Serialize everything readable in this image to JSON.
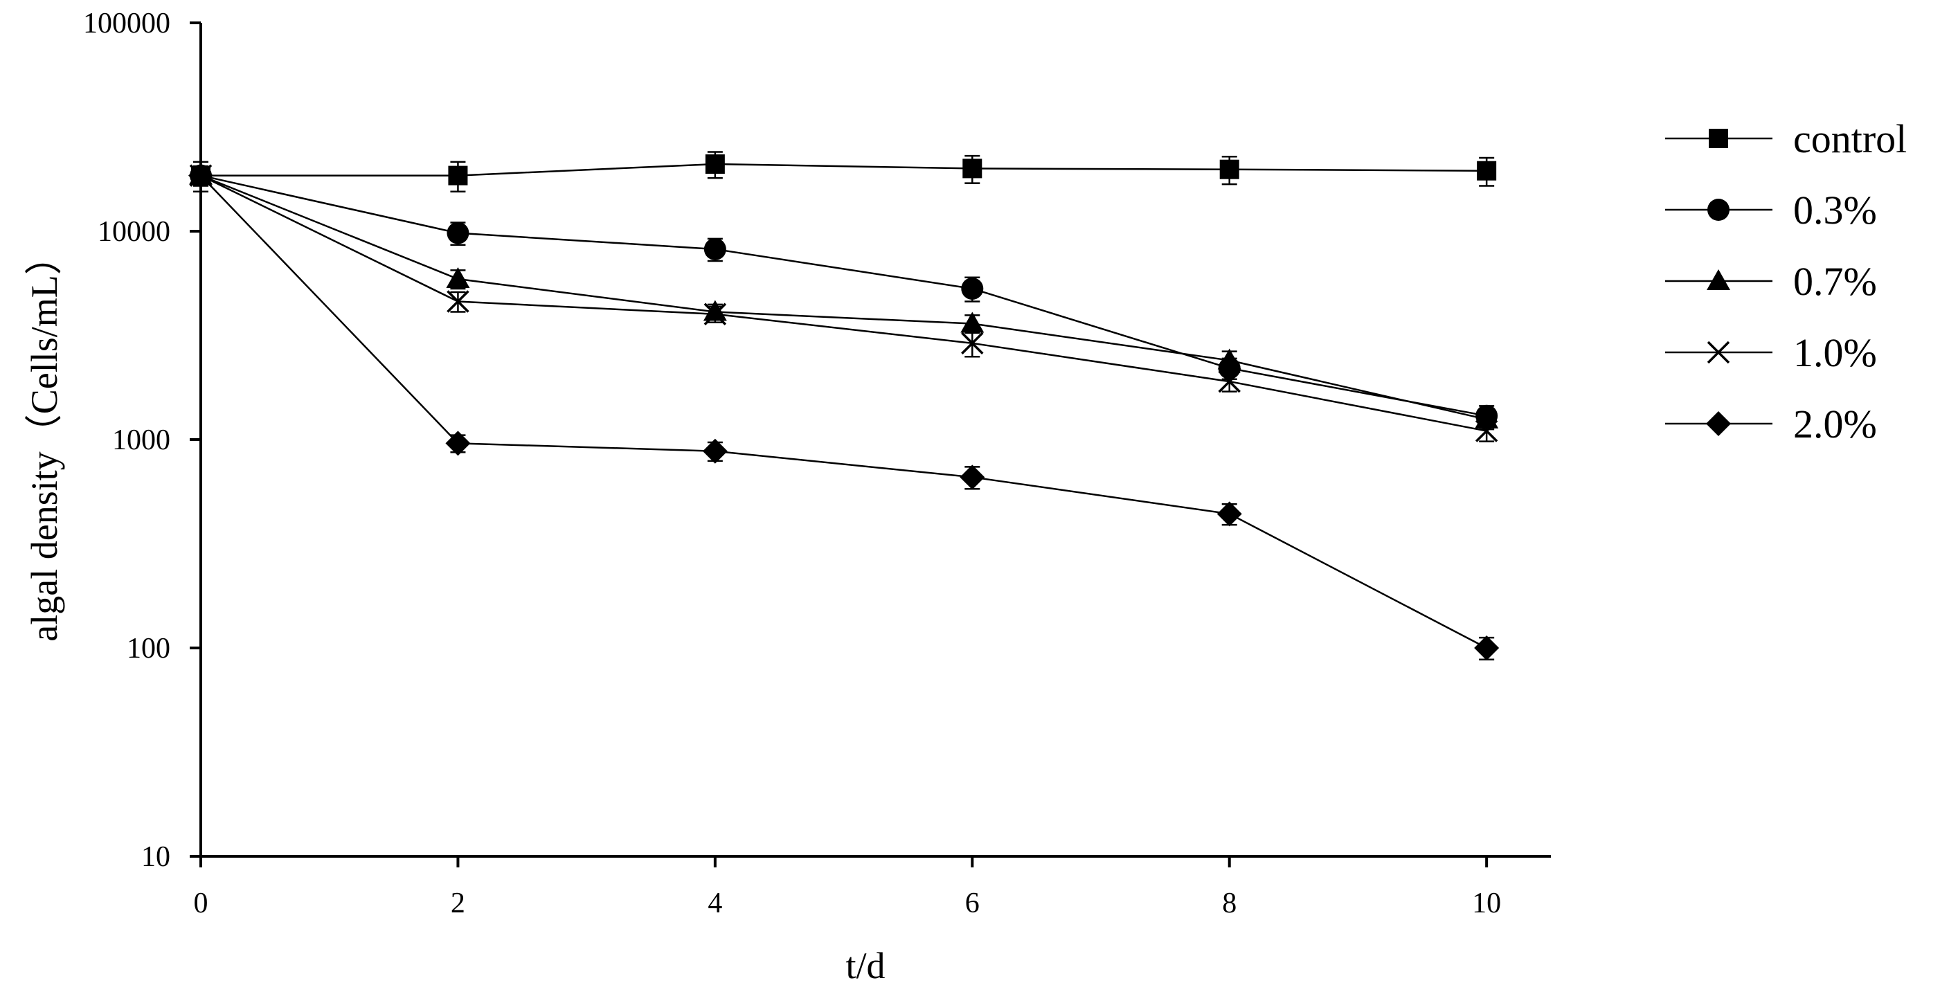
{
  "chart_data": {
    "type": "line",
    "xlabel": "t/d",
    "ylabel": "algal density（Cells/mL）",
    "x": [
      0,
      2,
      4,
      6,
      8,
      10
    ],
    "x_ticks": [
      "0",
      "2",
      "4",
      "6",
      "8",
      "10"
    ],
    "y_ticks": [
      "10",
      "100",
      "1000",
      "10000",
      "100000"
    ],
    "y_scale": "log",
    "xlim": [
      0,
      10.5
    ],
    "ylim": [
      10,
      100000
    ],
    "grid": false,
    "legend_position": "right",
    "series": [
      {
        "name": "control",
        "marker": "square",
        "values": [
          18500,
          18500,
          21000,
          20000,
          19800,
          19500
        ],
        "errors": [
          3000,
          3000,
          3000,
          3000,
          3000,
          3000
        ]
      },
      {
        "name": "0.3%",
        "marker": "circle",
        "values": [
          18500,
          9800,
          8200,
          5300,
          2200,
          1300
        ],
        "errors": [
          2000,
          1200,
          1000,
          700,
          250,
          150
        ]
      },
      {
        "name": "0.7%",
        "marker": "triangle",
        "values": [
          18500,
          5900,
          4100,
          3600,
          2400,
          1250
        ],
        "errors": [
          1500,
          600,
          350,
          350,
          250,
          130
        ]
      },
      {
        "name": "1.0%",
        "marker": "x",
        "values": [
          18500,
          4600,
          4000,
          2900,
          1900,
          1100
        ],
        "errors": [
          1500,
          500,
          350,
          400,
          200,
          120
        ]
      },
      {
        "name": "2.0%",
        "marker": "diamond",
        "values": [
          18500,
          960,
          880,
          660,
          440,
          100
        ],
        "errors": [
          1500,
          90,
          90,
          80,
          50,
          12
        ]
      }
    ]
  }
}
